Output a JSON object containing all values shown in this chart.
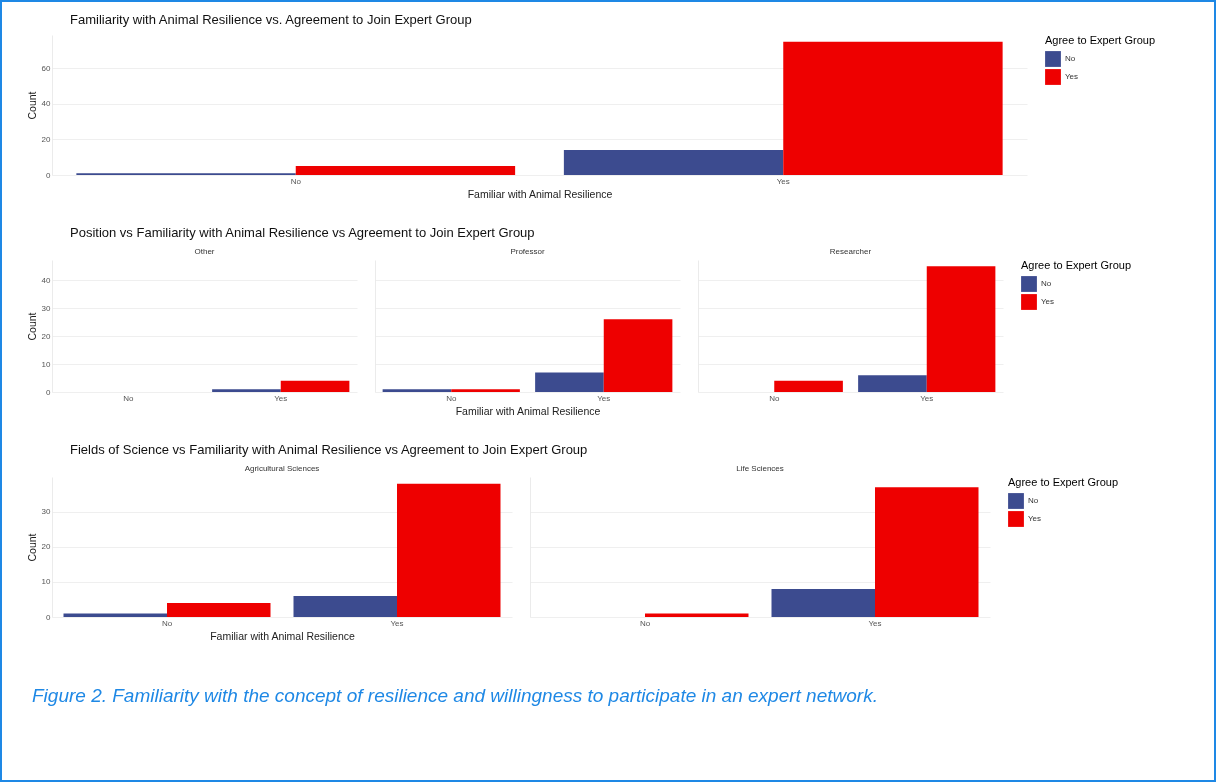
{
  "chart_data": [
    {
      "type": "bar",
      "title": "Familiarity with Animal Resilience vs. Agreement to Join Expert Group",
      "xlabel": "Familiar with Animal Resilience",
      "ylabel": "Count",
      "legend_title": "Agree to Expert Group",
      "legend": "right",
      "grid": "y",
      "categories": [
        "No",
        "Yes"
      ],
      "ylim": [
        0,
        78.75
      ],
      "yticks": [
        0,
        20,
        40,
        60
      ],
      "series": [
        {
          "name": "No",
          "color": "#3c4b8f",
          "values": [
            1,
            14
          ]
        },
        {
          "name": "Yes",
          "color": "#ee0000",
          "values": [
            5,
            75
          ]
        }
      ]
    },
    {
      "type": "bar",
      "title": "Position vs Familiarity with Animal Resilience vs Agreement to Join Expert Group",
      "subtitle": "Other",
      "ylabel": "Count",
      "grid": "y",
      "categories": [
        "No",
        "Yes"
      ],
      "ylim": [
        0,
        47.25
      ],
      "yticks": [
        0,
        10,
        20,
        30,
        40
      ],
      "series": [
        {
          "color": "#3c4b8f",
          "values": [
            null,
            1
          ]
        },
        {
          "color": "#ee0000",
          "values": [
            null,
            4
          ]
        }
      ]
    },
    {
      "type": "bar",
      "subtitle": "Professor",
      "xlabel": "Familiar with Animal Resilience",
      "grid": "y",
      "tick_labels": "x",
      "categories": [
        "No",
        "Yes"
      ],
      "ylim": [
        0,
        47.25
      ],
      "yticks": [
        0,
        10,
        20,
        30,
        40
      ],
      "series": [
        {
          "color": "#3c4b8f",
          "values": [
            1,
            7
          ]
        },
        {
          "color": "#ee0000",
          "values": [
            1,
            26
          ]
        }
      ]
    },
    {
      "type": "bar",
      "subtitle": "Researcher",
      "legend_title": "Agree to Expert Group",
      "legend": "right",
      "grid": "y",
      "tick_labels": "x",
      "categories": [
        "No",
        "Yes"
      ],
      "ylim": [
        0,
        47.25
      ],
      "yticks": [
        0,
        10,
        20,
        30,
        40
      ],
      "series": [
        {
          "name": "No",
          "color": "#3c4b8f",
          "values": [
            null,
            6
          ]
        },
        {
          "name": "Yes",
          "color": "#ee0000",
          "values": [
            4,
            45
          ]
        }
      ]
    },
    {
      "type": "bar",
      "title": "Fields of Science vs Familiarity with Animal Resilience vs Agreement to Join Expert Group",
      "subtitle": "Agricultural Sciences",
      "xlabel": "Familiar with Animal Resilience",
      "ylabel": "Count",
      "grid": "y",
      "categories": [
        "No",
        "Yes"
      ],
      "ylim": [
        0,
        39.9
      ],
      "yticks": [
        0,
        10,
        20,
        30
      ],
      "series": [
        {
          "color": "#3c4b8f",
          "values": [
            1,
            6
          ]
        },
        {
          "color": "#ee0000",
          "values": [
            4,
            38
          ]
        }
      ]
    },
    {
      "type": "bar",
      "subtitle": "Life Sciences",
      "legend_title": "Agree to Expert Group",
      "legend": "right",
      "grid": "y",
      "tick_labels": "x",
      "categories": [
        "No",
        "Yes"
      ],
      "ylim": [
        0,
        39.9
      ],
      "yticks": [
        0,
        10,
        20,
        30
      ],
      "annotations": [
        "Figure 2. Familiarity with the concept of resilience and willingness to participate in an expert network."
      ],
      "series": [
        {
          "name": "No",
          "color": "#3c4b8f",
          "values": [
            null,
            8
          ]
        },
        {
          "name": "Yes",
          "color": "#ee0000",
          "values": [
            1,
            37
          ]
        }
      ]
    }
  ]
}
